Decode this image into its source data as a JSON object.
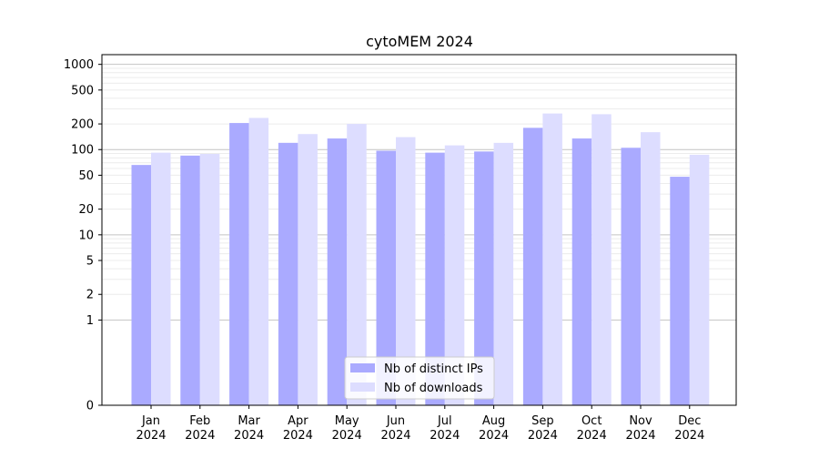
{
  "chart_data": {
    "type": "bar",
    "title": "cytoMEM 2024",
    "xlabel": "",
    "ylabel": "",
    "yscale": "symlog",
    "ylim": [
      0,
      1300
    ],
    "grid": "horizontal, major and minor",
    "legend_position": "bottom-center",
    "categories": [
      "Jan\n2024",
      "Feb\n2024",
      "Mar\n2024",
      "Apr\n2024",
      "May\n2024",
      "Jun\n2024",
      "Jul\n2024",
      "Aug\n2024",
      "Sep\n2024",
      "Oct\n2024",
      "Nov\n2024",
      "Dec\n2024"
    ],
    "yticks": [
      0,
      1,
      2,
      5,
      10,
      20,
      50,
      100,
      200,
      500,
      1000
    ],
    "series": [
      {
        "name": "Nb of distinct IPs",
        "color": "#aaaaff",
        "values": [
          66,
          85,
          205,
          120,
          135,
          97,
          92,
          95,
          180,
          135,
          105,
          48
        ]
      },
      {
        "name": "Nb of downloads",
        "color": "#ddddff",
        "values": [
          92,
          89,
          235,
          152,
          200,
          140,
          112,
          120,
          265,
          260,
          160,
          87
        ]
      }
    ]
  }
}
